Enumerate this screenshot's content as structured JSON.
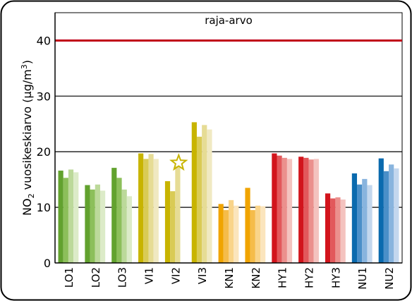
{
  "chart_data": {
    "type": "bar",
    "title": "",
    "xlabel": "",
    "ylabel": "NO2 vuosikeskiarvo (µg/m3)",
    "ylabel_parts": {
      "pre": "NO",
      "sub": "2",
      "mid": " vuosikeskiarvo (µg/m",
      "sup": "3",
      "post": ")"
    },
    "ylim": [
      0,
      45
    ],
    "yticks": [
      "0",
      "10",
      "20",
      "30",
      "40"
    ],
    "grid": "horizontal",
    "limit": {
      "label": "raja-arvo",
      "value": 40,
      "color": "#c00018"
    },
    "categories": [
      "LO1",
      "LO2",
      "LO3",
      "VI1",
      "VI2",
      "VI3",
      "KN1",
      "KN2",
      "HY1",
      "HY2",
      "HY3",
      "NU1",
      "NU2"
    ],
    "values": [
      [
        16.6,
        15.3,
        16.8,
        16.3
      ],
      [
        14.0,
        13.2,
        14.1,
        13.0
      ],
      [
        17.1,
        15.3,
        13.2,
        12.0
      ],
      [
        19.7,
        18.7,
        19.6,
        18.7
      ],
      [
        14.7,
        12.9,
        17.4,
        null
      ],
      [
        25.3,
        22.7,
        24.8,
        24.0
      ],
      [
        10.6,
        9.5,
        11.3,
        10.3
      ],
      [
        13.5,
        9.5,
        10.3,
        10.2
      ],
      [
        19.7,
        19.3,
        18.9,
        18.7
      ],
      [
        19.1,
        18.9,
        18.6,
        18.7
      ],
      [
        12.5,
        11.6,
        11.8,
        11.4
      ],
      [
        16.1,
        14.1,
        15.1,
        14.0
      ],
      [
        18.8,
        16.5,
        17.7,
        17.0
      ]
    ],
    "markers": [
      {
        "category": "VI2",
        "value": 18.0,
        "shape": "star"
      }
    ],
    "colors": {
      "LO": [
        "#62a22e",
        "#8cbf5a",
        "#bcd99a",
        "#dcebc8"
      ],
      "VI": [
        "#c8b400",
        "#d9cb55",
        "#e6dc95",
        "#f0e9c2"
      ],
      "KN": [
        "#f0a400",
        "#f5bc4a",
        "#f9d48a",
        "#fbe5bd"
      ],
      "HY": [
        "#d2141c",
        "#e2585b",
        "#eb908d",
        "#f4c3bf"
      ],
      "NU": [
        "#0a6aae",
        "#4a8fc8",
        "#88b4de",
        "#c3d7ee"
      ]
    }
  }
}
